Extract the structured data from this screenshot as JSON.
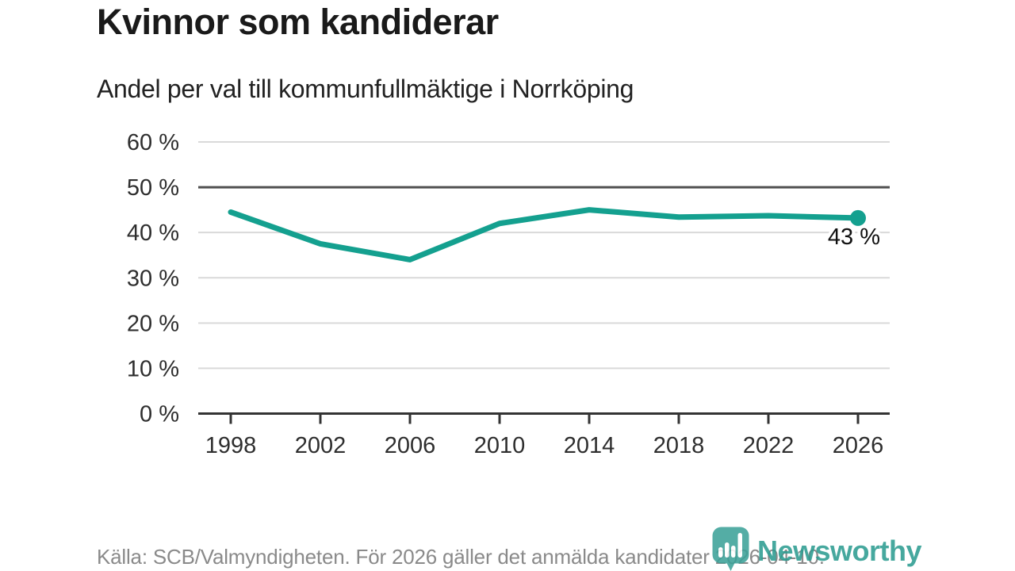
{
  "header": {
    "title": "Kvinnor som kandiderar",
    "subtitle": "Andel per val till kommunfullmäktige i Norrköping"
  },
  "chart_data": {
    "type": "line",
    "title": "Kvinnor som kandiderar",
    "subtitle": "Andel per val till kommunfullmäktige i Norrköping",
    "x": [
      1998,
      2002,
      2006,
      2010,
      2014,
      2018,
      2022,
      2026
    ],
    "x_labels": [
      "1998",
      "2002",
      "2006",
      "2010",
      "2014",
      "2018",
      "2022",
      "2026"
    ],
    "values": [
      44.5,
      37.5,
      34.0,
      42.0,
      45.0,
      43.4,
      43.7,
      43.2
    ],
    "ylim": [
      0,
      60
    ],
    "ytick_values": [
      0,
      10,
      20,
      30,
      40,
      50,
      60
    ],
    "ytick_labels": [
      "0 %",
      "10 %",
      "20 %",
      "30 %",
      "40 %",
      "50 %",
      "60 %"
    ],
    "reference_line": 50,
    "grid": true,
    "legend": "none",
    "last_point_label": "43 %",
    "colors": {
      "line": "#14a08f",
      "grid": "#d9d9d9",
      "reference": "#4f4f4f",
      "axis": "#333333",
      "tick_text": "#2e2e2e",
      "annotation_text": "#111111",
      "annotation_halo": "#ffffff"
    }
  },
  "footer": {
    "source": "Källa: SCB/Valmyndigheten. För 2026 gäller det anmälda kandidater 2026-04-10."
  },
  "logo": {
    "text": "Newsworthy",
    "icon": "bar-chart-pin-icon",
    "icon_color": "#3ba198",
    "text_color": "#2b9c90"
  }
}
